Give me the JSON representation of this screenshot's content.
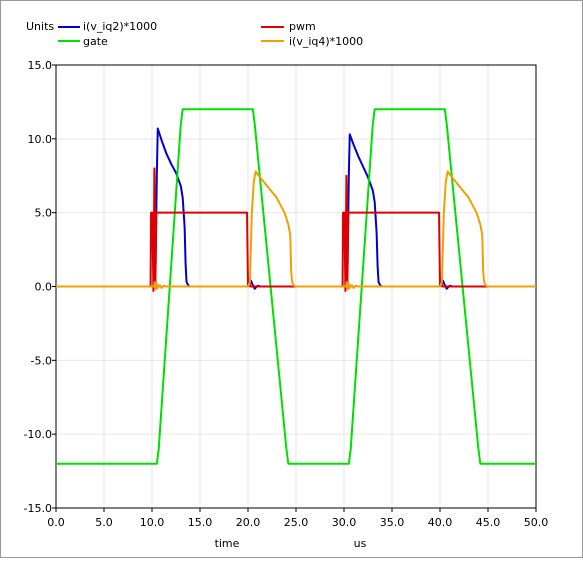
{
  "chart_data": {
    "type": "line",
    "units_label": "Units",
    "xlabel": "time",
    "xunit": "us",
    "xlim": [
      0,
      50
    ],
    "ylim": [
      -15,
      15
    ],
    "xticks": [
      0,
      5,
      10,
      15,
      20,
      25,
      30,
      35,
      40,
      45,
      50
    ],
    "yticks": [
      15,
      10,
      5,
      0,
      -5,
      -10,
      -15
    ],
    "xtick_labels": [
      "0.0",
      "5.0",
      "10.0",
      "15.0",
      "20.0",
      "25.0",
      "30.0",
      "35.0",
      "40.0",
      "45.0",
      "50.0"
    ],
    "ytick_labels": [
      "15.0",
      "10.0",
      "5.0",
      "0.0",
      "-5.0",
      "-10.0",
      "-15.0"
    ],
    "grid": true,
    "legend_position": "top",
    "series": [
      {
        "name": "i(v_iq2)*1000",
        "color": "#0000cc",
        "x": [
          0,
          10.0,
          10.2,
          10.35,
          10.5,
          10.6,
          11.0,
          11.5,
          12.0,
          12.5,
          13.0,
          13.2,
          13.4,
          13.5,
          13.6,
          13.8,
          14.0,
          19.9,
          20.1,
          20.3,
          20.5,
          20.7,
          21.0,
          21.3,
          22.0,
          30.0,
          30.2,
          30.35,
          30.5,
          30.6,
          31.0,
          31.5,
          32.0,
          32.5,
          33.0,
          33.2,
          33.4,
          33.5,
          33.6,
          33.8,
          34.0,
          39.9,
          40.1,
          40.3,
          40.5,
          40.7,
          41.0,
          41.3,
          42.0,
          50
        ],
        "y": [
          0,
          0,
          0.05,
          0.3,
          7.5,
          10.7,
          9.9,
          9.0,
          8.3,
          7.7,
          6.8,
          6.0,
          4.0,
          1.5,
          0.3,
          0.05,
          0,
          0,
          0.05,
          0.4,
          0.1,
          -0.15,
          0.05,
          0,
          0,
          0,
          0.05,
          0.3,
          7.5,
          10.3,
          9.6,
          8.8,
          8.1,
          7.4,
          6.5,
          5.7,
          3.6,
          1.4,
          0.3,
          0.05,
          0,
          0,
          0.05,
          0.4,
          0.1,
          -0.15,
          0.05,
          0,
          0,
          0
        ]
      },
      {
        "name": "gate",
        "color": "#00e000",
        "x": [
          0,
          10.5,
          10.7,
          13.0,
          13.2,
          20.5,
          20.7,
          24.0,
          24.2,
          30.5,
          30.7,
          33.0,
          33.2,
          40.5,
          40.7,
          44.0,
          44.2,
          50
        ],
        "y": [
          -12,
          -12,
          -11,
          11,
          12,
          12,
          11,
          -11,
          -12,
          -12,
          -11,
          11,
          12,
          12,
          11,
          -11,
          -12,
          -12
        ]
      },
      {
        "name": "pwm",
        "color": "#dd0000",
        "x": [
          0,
          9.85,
          9.9,
          10.05,
          10.1,
          10.15,
          10.2,
          10.25,
          10.3,
          10.35,
          10.45,
          19.9,
          20.0,
          20.05,
          20.15,
          20.25,
          29.85,
          29.9,
          30.05,
          30.1,
          30.15,
          30.2,
          30.25,
          30.3,
          30.35,
          30.45,
          39.9,
          40.0,
          40.05,
          40.15,
          40.25,
          50
        ],
        "y": [
          0,
          0,
          5,
          5,
          2,
          -0.3,
          3.5,
          8.0,
          5.5,
          0.2,
          5,
          5,
          0,
          0.5,
          0.2,
          0,
          0,
          5,
          5,
          2,
          -0.3,
          3.5,
          7.5,
          5.5,
          0.2,
          5,
          5,
          0,
          0.5,
          0.2,
          0,
          0
        ]
      },
      {
        "name": "i(v_iq4)*1000",
        "color": "#f0a000",
        "x": [
          0,
          10.2,
          10.3,
          10.4,
          10.5,
          10.6,
          10.8,
          11.0,
          11.2,
          11.5,
          12.5,
          20.0,
          20.2,
          20.4,
          20.6,
          20.8,
          21.0,
          21.5,
          22.0,
          23.0,
          23.8,
          24.2,
          24.4,
          24.5,
          24.6,
          24.8,
          25.0,
          30.2,
          30.3,
          30.4,
          30.5,
          30.6,
          30.8,
          31.0,
          31.2,
          31.5,
          32.5,
          40.0,
          40.2,
          40.4,
          40.6,
          40.8,
          41.0,
          41.5,
          42.0,
          43.0,
          43.8,
          44.2,
          44.4,
          44.5,
          44.6,
          44.8,
          45.0,
          50
        ],
        "y": [
          0,
          0,
          0.3,
          -0.2,
          0.2,
          -0.1,
          0.1,
          -0.1,
          0.05,
          0,
          0,
          0,
          0.3,
          5.0,
          7.1,
          7.8,
          7.6,
          7.2,
          6.8,
          6.0,
          5.0,
          4.2,
          3.5,
          1.0,
          0.3,
          0.05,
          0,
          0,
          0.3,
          -0.2,
          0.2,
          -0.1,
          0.1,
          -0.1,
          0.05,
          0,
          0,
          0,
          0.3,
          5.0,
          7.1,
          7.8,
          7.6,
          7.2,
          6.8,
          6.0,
          5.0,
          4.2,
          3.5,
          1.0,
          0.3,
          0.05,
          0,
          0
        ]
      }
    ]
  }
}
